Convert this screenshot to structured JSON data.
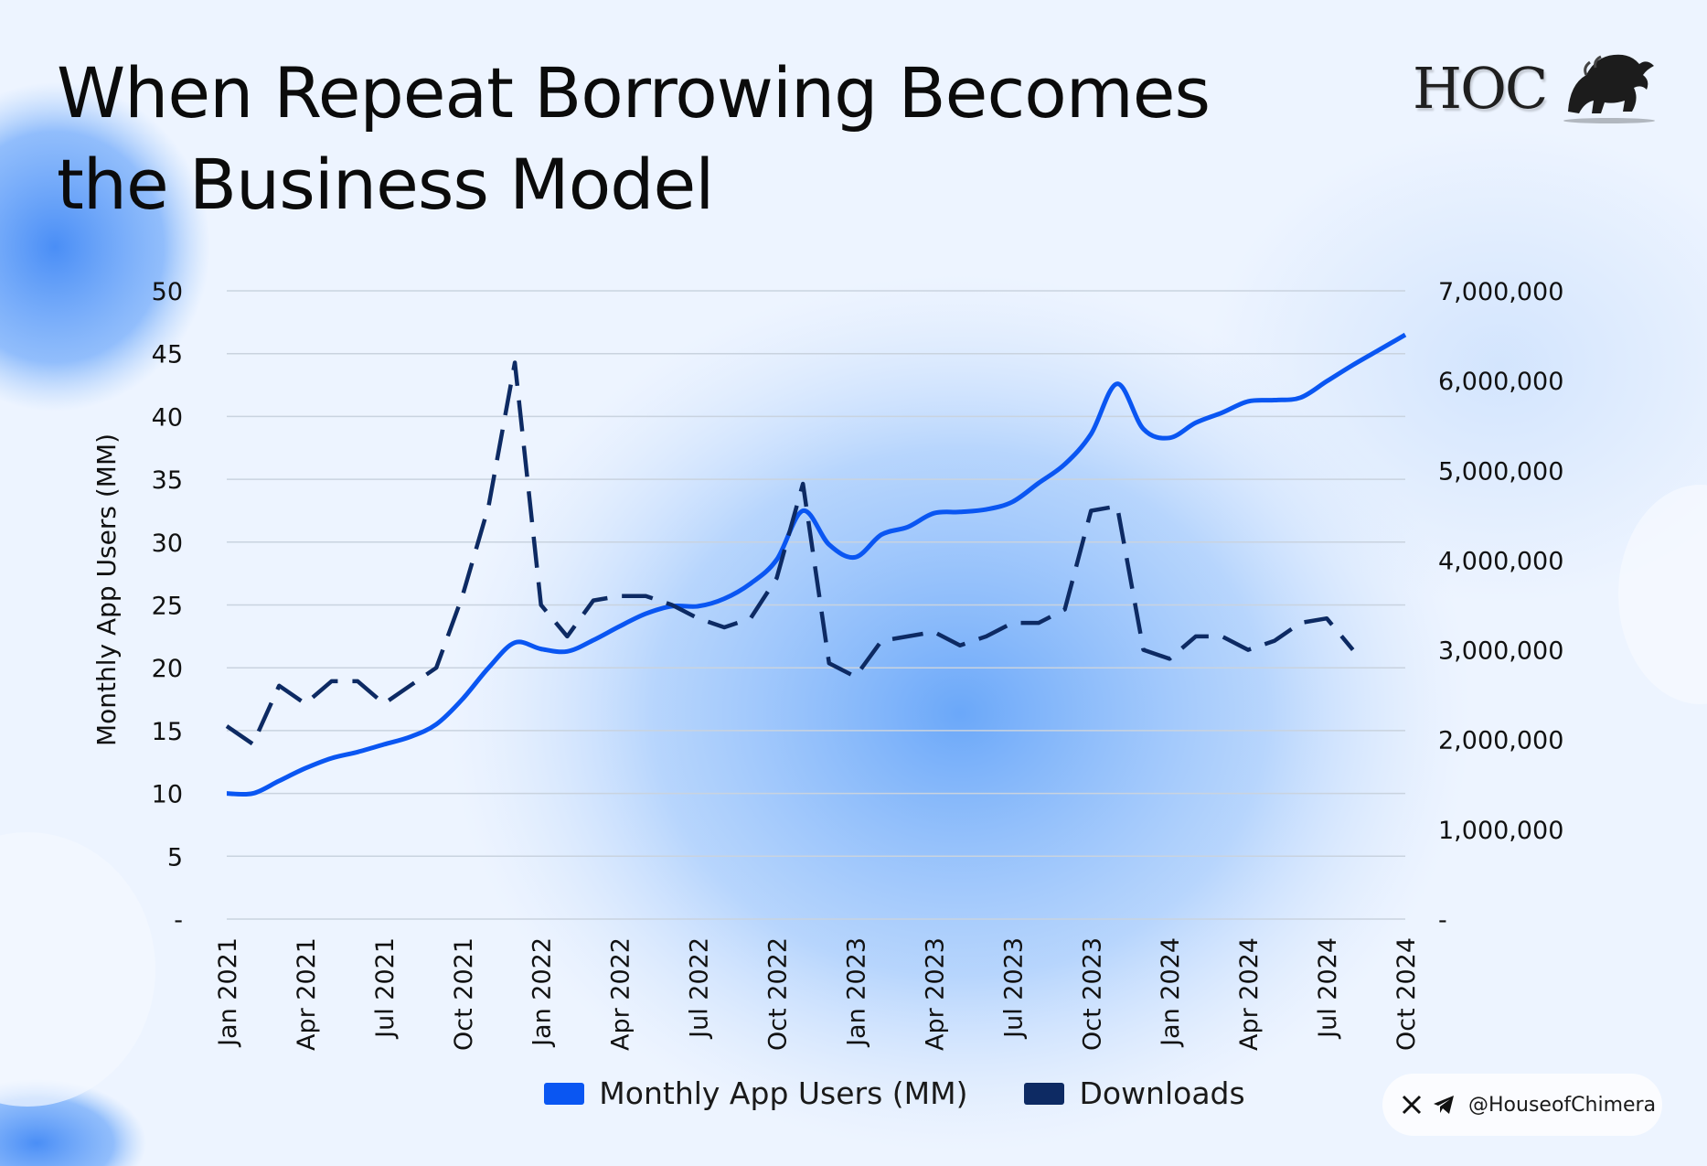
{
  "title_lines": [
    "When Repeat Borrowing Becomes",
    "the Business Model"
  ],
  "logo": {
    "text": "HOC"
  },
  "social": {
    "handle": "@HouseofChimera",
    "icons": [
      "x-icon",
      "telegram-icon"
    ]
  },
  "colors": {
    "users": "#0a56f2",
    "downloads": "#0d2a63",
    "grid": "#c9d3df"
  },
  "chart_data": {
    "type": "line",
    "x_ticks": [
      "Jan 2021",
      "Apr 2021",
      "Jul 2021",
      "Oct 2021",
      "Jan 2022",
      "Apr 2022",
      "Jul 2022",
      "Oct 2022",
      "Jan 2023",
      "Apr 2023",
      "Jul 2023",
      "Oct 2023",
      "Jan 2024",
      "Apr 2024",
      "Jul 2024",
      "Oct 2024"
    ],
    "x": [
      "Jan 2021",
      "Feb 2021",
      "Mar 2021",
      "Apr 2021",
      "May 2021",
      "Jun 2021",
      "Jul 2021",
      "Aug 2021",
      "Sep 2021",
      "Oct 2021",
      "Nov 2021",
      "Dec 2021",
      "Jan 2022",
      "Feb 2022",
      "Mar 2022",
      "Apr 2022",
      "May 2022",
      "Jun 2022",
      "Jul 2022",
      "Aug 2022",
      "Sep 2022",
      "Oct 2022",
      "Nov 2022",
      "Dec 2022",
      "Jan 2023",
      "Feb 2023",
      "Mar 2023",
      "Apr 2023",
      "May 2023",
      "Jun 2023",
      "Jul 2023",
      "Aug 2023",
      "Sep 2023",
      "Oct 2023",
      "Nov 2023",
      "Dec 2023",
      "Jan 2024",
      "Feb 2024",
      "Mar 2024",
      "Apr 2024",
      "May 2024",
      "Jun 2024",
      "Jul 2024",
      "Aug 2024",
      "Sep 2024",
      "Oct 2024"
    ],
    "series": [
      {
        "name": "Monthly App Users (MM)",
        "axis": "left",
        "style": "solid",
        "values": [
          10,
          10,
          11,
          12,
          12.8,
          13.3,
          13.9,
          14.5,
          15.5,
          17.5,
          20,
          22,
          21.5,
          21.3,
          22.2,
          23.3,
          24.3,
          24.9,
          24.9,
          25.5,
          26.7,
          28.6,
          32.5,
          29.8,
          28.8,
          30.6,
          31.2,
          32.3,
          32.4,
          32.6,
          33.2,
          34.7,
          36.2,
          38.6,
          42.6,
          39,
          38.3,
          39.5,
          40.3,
          41.2,
          41.3,
          41.5,
          42.8,
          44.1,
          45.3,
          46.5
        ]
      },
      {
        "name": "Downloads",
        "axis": "right",
        "style": "dashed",
        "values": [
          2150000,
          1950000,
          2600000,
          2400000,
          2650000,
          2650000,
          2400000,
          2600000,
          2800000,
          3600000,
          4600000,
          6200000,
          3500000,
          3150000,
          3550000,
          3600000,
          3600000,
          3500000,
          3350000,
          3250000,
          3350000,
          3800000,
          4850000,
          2850000,
          2700000,
          3100000,
          3150000,
          3200000,
          3050000,
          3150000,
          3300000,
          3300000,
          3450000,
          4550000,
          4600000,
          3000000,
          2900000,
          3150000,
          3150000,
          3000000,
          3100000,
          3300000,
          3350000,
          3000000,
          null,
          null
        ]
      }
    ],
    "y_left": {
      "label": "Monthly App Users (MM)",
      "range": [
        0,
        50
      ],
      "ticks": [
        "-",
        "5",
        "10",
        "15",
        "20",
        "25",
        "30",
        "35",
        "40",
        "45",
        "50"
      ]
    },
    "y_right": {
      "label": "",
      "range": [
        0,
        7000000
      ],
      "ticks": [
        "-",
        "1,000,000",
        "2,000,000",
        "3,000,000",
        "4,000,000",
        "5,000,000",
        "6,000,000",
        "7,000,000"
      ]
    },
    "grid": true,
    "legend": {
      "placement": "bottom",
      "entries": [
        "Monthly App Users (MM)",
        "Downloads"
      ]
    }
  }
}
